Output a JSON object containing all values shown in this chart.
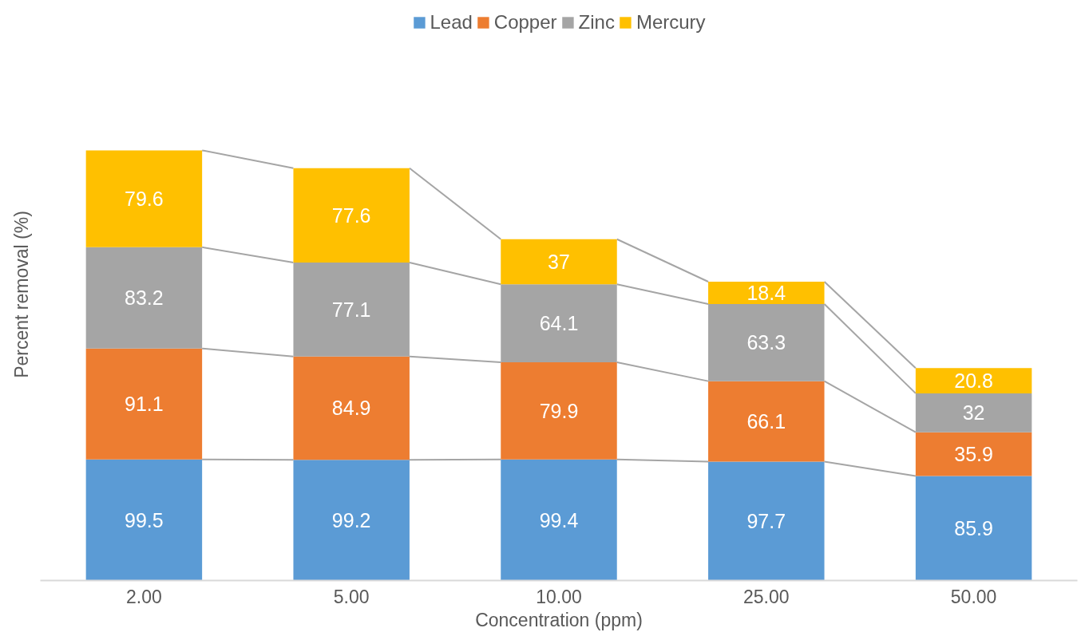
{
  "chart_data": {
    "type": "bar",
    "stacked": true,
    "data_labels": true,
    "legend": "top",
    "xlabel": "Concentration (ppm)",
    "ylabel": "Percent removal (%)",
    "categories": [
      "2.00",
      "5.00",
      "10.00",
      "25.00",
      "50.00"
    ],
    "series": [
      {
        "name": "Lead",
        "color": "#5b9bd5",
        "values": [
          99.5,
          99.2,
          99.4,
          97.7,
          85.9
        ]
      },
      {
        "name": "Copper",
        "color": "#ed7d31",
        "values": [
          91.1,
          84.9,
          79.9,
          66.1,
          35.9
        ]
      },
      {
        "name": "Zinc",
        "color": "#a5a5a5",
        "values": [
          83.2,
          77.1,
          64.1,
          63.3,
          32
        ]
      },
      {
        "name": "Mercury",
        "color": "#ffc000",
        "values": [
          79.6,
          77.6,
          37,
          18.4,
          20.8
        ]
      }
    ]
  }
}
